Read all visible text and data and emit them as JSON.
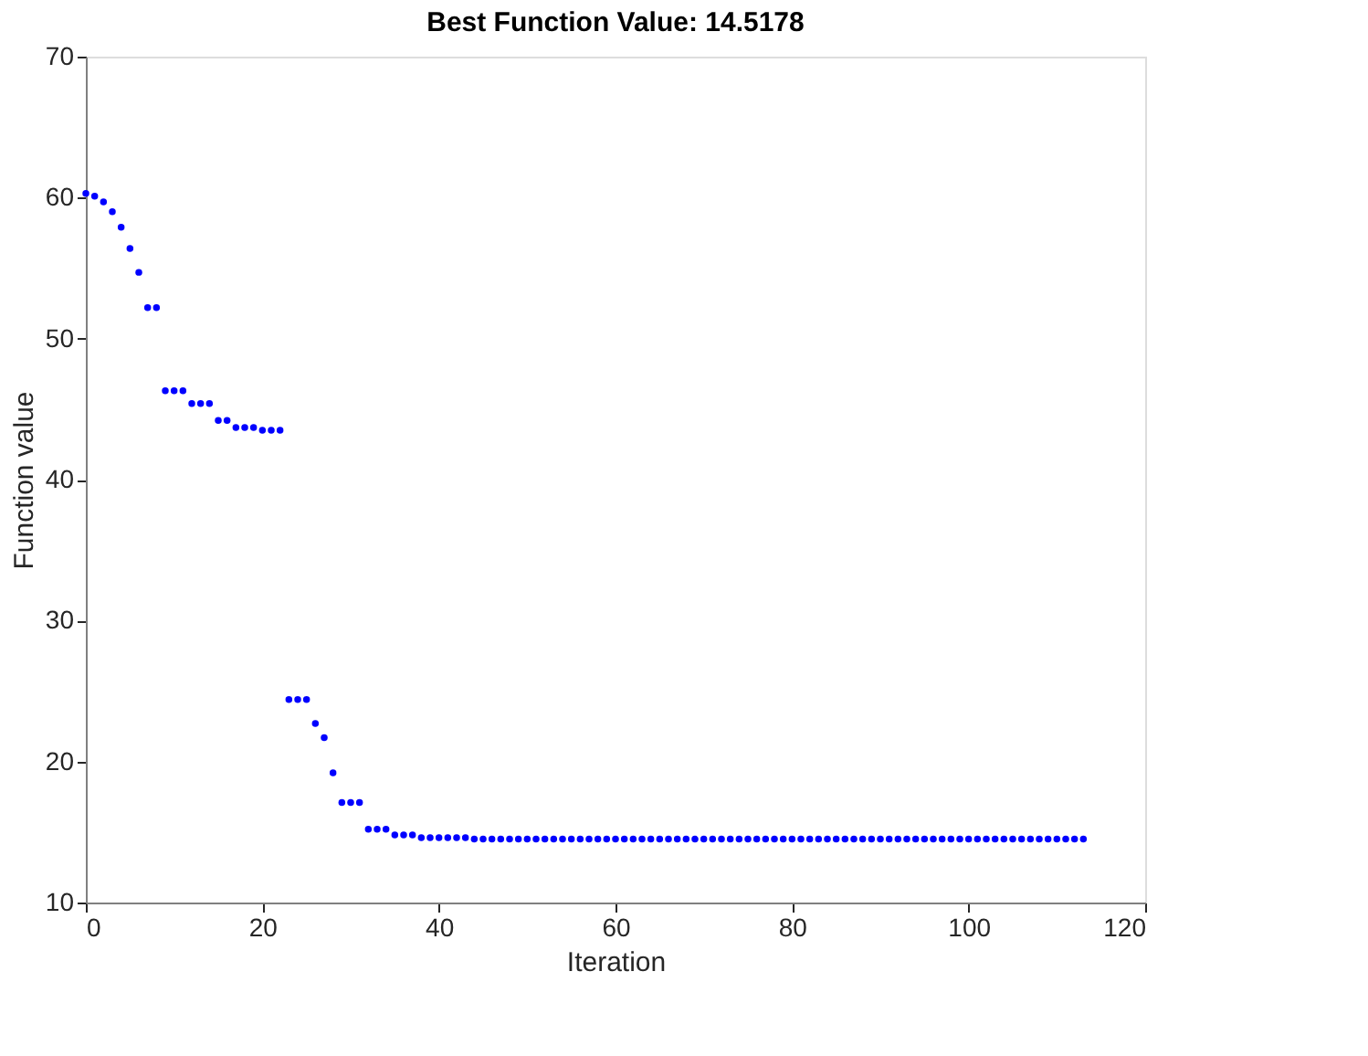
{
  "chart_data": {
    "type": "scatter",
    "title": "Best Function Value: 14.5178",
    "xlabel": "Iteration",
    "ylabel": "Function value",
    "x": [
      0,
      1,
      2,
      3,
      4,
      5,
      6,
      7,
      8,
      9,
      10,
      11,
      12,
      13,
      14,
      15,
      16,
      17,
      18,
      19,
      20,
      21,
      22,
      23,
      24,
      25,
      26,
      27,
      28,
      29,
      30,
      31,
      32,
      33,
      34,
      35,
      36,
      37,
      38,
      39,
      40,
      41,
      42,
      43,
      44,
      45,
      46,
      47,
      48,
      49,
      50,
      51,
      52,
      53,
      54,
      55,
      56,
      57,
      58,
      59,
      60,
      61,
      62,
      63,
      64,
      65,
      66,
      67,
      68,
      69,
      70,
      71,
      72,
      73,
      74,
      75,
      76,
      77,
      78,
      79,
      80,
      81,
      82,
      83,
      84,
      85,
      86,
      87,
      88,
      89,
      90,
      91,
      92,
      93,
      94,
      95,
      96,
      97,
      98,
      99,
      100,
      101,
      102,
      103,
      104,
      105,
      106,
      107,
      108,
      109,
      110,
      111,
      112,
      113
    ],
    "series": [
      {
        "color": "#0000ff",
        "values": [
          60.3,
          60.1,
          59.7,
          59.0,
          57.9,
          56.4,
          54.7,
          52.2,
          52.2,
          46.3,
          46.3,
          46.3,
          45.4,
          45.4,
          45.4,
          44.2,
          44.2,
          43.7,
          43.7,
          43.7,
          43.5,
          43.5,
          43.5,
          24.4,
          24.4,
          24.4,
          22.7,
          21.7,
          19.2,
          17.1,
          17.1,
          17.1,
          15.2,
          15.2,
          15.2,
          14.8,
          14.8,
          14.8,
          14.6,
          14.6,
          14.6,
          14.6,
          14.6,
          14.6,
          14.5,
          14.5,
          14.5,
          14.5,
          14.5,
          14.5,
          14.5,
          14.5,
          14.5,
          14.5,
          14.5,
          14.5,
          14.5,
          14.5,
          14.5,
          14.5,
          14.5,
          14.5,
          14.5,
          14.5,
          14.5,
          14.5,
          14.5,
          14.5,
          14.5,
          14.5,
          14.5,
          14.5,
          14.5,
          14.5,
          14.5,
          14.5,
          14.5,
          14.5,
          14.5,
          14.5,
          14.5,
          14.5,
          14.5,
          14.5,
          14.5,
          14.5,
          14.5,
          14.5,
          14.5,
          14.5,
          14.5,
          14.5,
          14.5,
          14.5,
          14.5,
          14.5,
          14.5,
          14.5,
          14.5,
          14.5,
          14.5,
          14.5,
          14.5,
          14.5,
          14.5,
          14.5,
          14.5,
          14.5,
          14.5,
          14.5,
          14.5,
          14.5,
          14.5,
          14.5
        ]
      }
    ],
    "xlim": [
      0,
      120
    ],
    "xticks": [
      0,
      20,
      40,
      60,
      80,
      100,
      120
    ],
    "ylim": [
      10,
      70
    ],
    "yticks": [
      10,
      20,
      30,
      40,
      50,
      60,
      70
    ],
    "marker": "circle"
  }
}
